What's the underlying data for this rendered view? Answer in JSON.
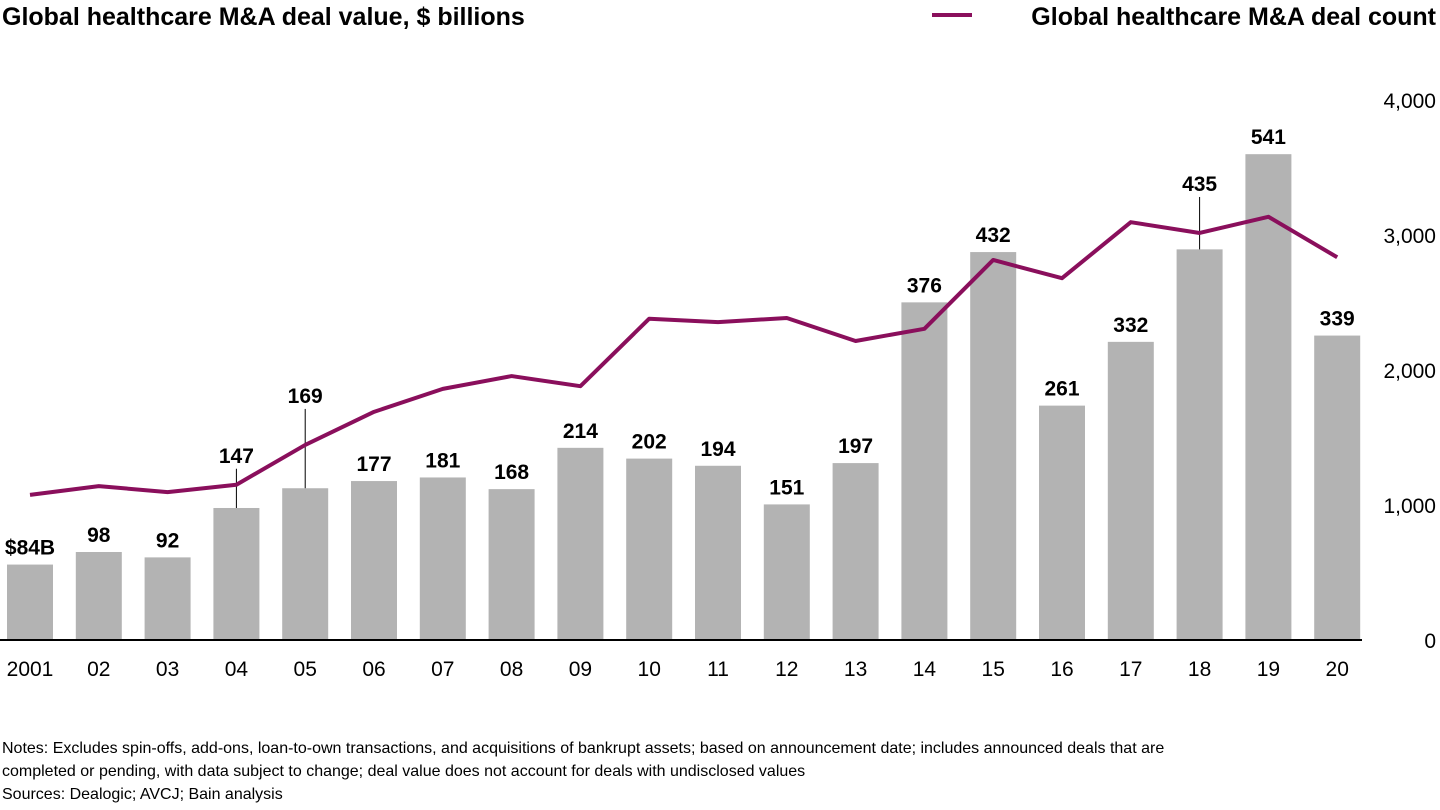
{
  "chart_data": {
    "type": "bar+line",
    "title": "Global healthcare M&A deal value, $ billions",
    "categories": [
      "2001",
      "02",
      "03",
      "04",
      "05",
      "06",
      "07",
      "08",
      "09",
      "10",
      "11",
      "12",
      "13",
      "14",
      "15",
      "16",
      "17",
      "18",
      "19",
      "20"
    ],
    "series": [
      {
        "name": "Global healthcare M&A deal value, $ billions",
        "type": "bar",
        "values": [
          84,
          98,
          92,
          147,
          169,
          177,
          181,
          168,
          214,
          202,
          194,
          151,
          197,
          376,
          432,
          261,
          332,
          435,
          541,
          339
        ],
        "data_labels": [
          "$84B",
          "98",
          "92",
          "147",
          "169",
          "177",
          "181",
          "168",
          "214",
          "202",
          "194",
          "151",
          "197",
          "376",
          "432",
          "261",
          "332",
          "435",
          "541",
          "339"
        ],
        "color": "#b3b3b3"
      },
      {
        "name": "Global healthcare M&A deal count",
        "type": "line",
        "axis": "right",
        "values": [
          1075,
          1140,
          1095,
          1150,
          1445,
          1690,
          1860,
          1955,
          1880,
          2380,
          2355,
          2385,
          2215,
          2305,
          2815,
          2680,
          3095,
          3015,
          3135,
          2835
        ],
        "color": "#8a0f5c"
      }
    ],
    "right_axis": {
      "ylim": [
        0,
        4000
      ],
      "ticks": [
        "0",
        "1,000",
        "2,000",
        "3,000",
        "4,000"
      ]
    },
    "legend": {
      "placement": "top-right",
      "label": "Global healthcare M&A deal count"
    },
    "grid": false
  },
  "notes": {
    "line1": "Notes: Excludes spin-offs, add-ons, loan-to-own transactions, and acquisitions of bankrupt assets; based on announcement date; includes announced deals that are",
    "line2": "completed or pending, with data subject to change; deal value does not account for deals with undisclosed values",
    "sources": "Sources: Dealogic; AVCJ; Bain analysis"
  }
}
